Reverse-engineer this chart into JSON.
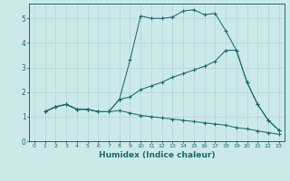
{
  "xlabel": "Humidex (Indice chaleur)",
  "xlim": [
    -0.5,
    23.5
  ],
  "ylim": [
    0,
    5.6
  ],
  "yticks": [
    0,
    1,
    2,
    3,
    4,
    5
  ],
  "xticks": [
    0,
    1,
    2,
    3,
    4,
    5,
    6,
    7,
    8,
    9,
    10,
    11,
    12,
    13,
    14,
    15,
    16,
    17,
    18,
    19,
    20,
    21,
    22,
    23
  ],
  "background_color": "#cce9ea",
  "line_color": "#1a6b6b",
  "grid_color": "#afd4d4",
  "series": [
    {
      "x": [
        1,
        2,
        3,
        4,
        5,
        6,
        7,
        8,
        9,
        10,
        11,
        12,
        13,
        14,
        15,
        16,
        17,
        18,
        19,
        20,
        21,
        22,
        23
      ],
      "y": [
        1.2,
        1.4,
        1.5,
        1.3,
        1.3,
        1.2,
        1.2,
        1.7,
        3.3,
        5.1,
        5.0,
        5.0,
        5.05,
        5.3,
        5.35,
        5.15,
        5.2,
        4.5,
        3.7,
        2.4,
        1.5,
        0.85,
        0.45
      ]
    },
    {
      "x": [
        1,
        2,
        3,
        4,
        5,
        6,
        7,
        8,
        9,
        10,
        11,
        12,
        13,
        14,
        15,
        16,
        17,
        18,
        19,
        20,
        21,
        22,
        23
      ],
      "y": [
        1.2,
        1.4,
        1.5,
        1.3,
        1.3,
        1.2,
        1.2,
        1.7,
        1.8,
        2.1,
        2.25,
        2.4,
        2.6,
        2.75,
        2.9,
        3.05,
        3.25,
        3.7,
        3.7,
        2.4,
        1.5,
        0.85,
        0.45
      ]
    },
    {
      "x": [
        1,
        2,
        3,
        4,
        5,
        6,
        7,
        8,
        9,
        10,
        11,
        12,
        13,
        14,
        15,
        16,
        17,
        18,
        19,
        20,
        21,
        22,
        23
      ],
      "y": [
        1.2,
        1.4,
        1.5,
        1.3,
        1.3,
        1.2,
        1.2,
        1.25,
        1.15,
        1.05,
        1.0,
        0.95,
        0.9,
        0.85,
        0.8,
        0.75,
        0.7,
        0.65,
        0.55,
        0.5,
        0.42,
        0.35,
        0.28
      ]
    }
  ]
}
